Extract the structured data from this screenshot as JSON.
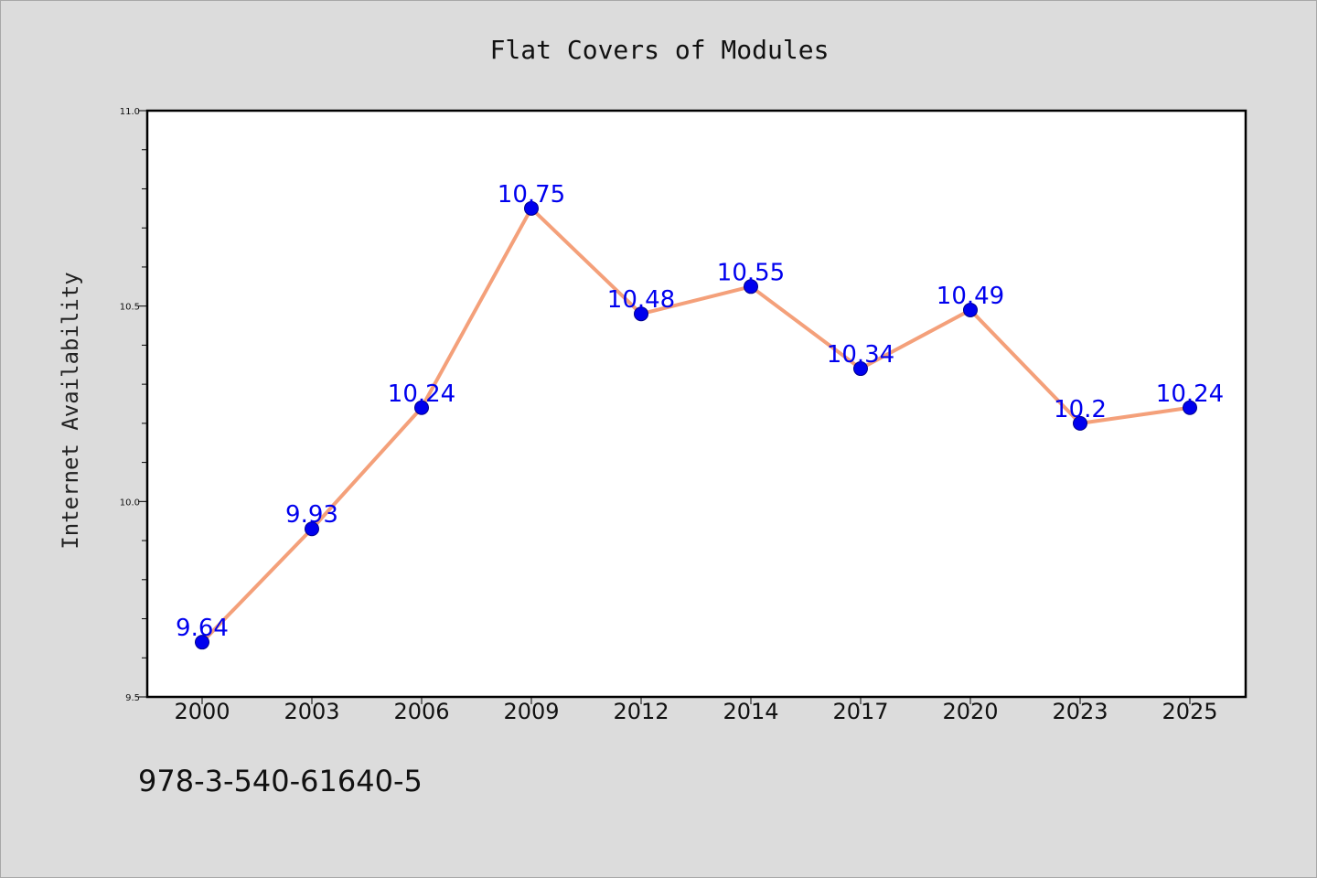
{
  "chart_data": {
    "type": "line",
    "title": "Flat Covers of Modules",
    "xlabel": "",
    "ylabel": "Internet Availability",
    "categories": [
      "2000",
      "2003",
      "2006",
      "2009",
      "2012",
      "2014",
      "2017",
      "2020",
      "2023",
      "2025"
    ],
    "series": [
      {
        "values": [
          9.64,
          9.93,
          10.24,
          10.75,
          10.48,
          10.55,
          10.34,
          10.49,
          10.2,
          10.24
        ],
        "data_labels": [
          "9.64",
          "9.93",
          "10.24",
          "10.75",
          "10.48",
          "10.55",
          "10.34",
          "10.49",
          "10.2",
          "10.24"
        ],
        "line_color": "#f4a07a",
        "marker_color": "#0000ee"
      }
    ],
    "ylim": [
      9.5,
      11.0
    ],
    "yticks": [
      "9.5",
      "10.0",
      "10.5",
      "11.0"
    ],
    "grid": false,
    "data_label_color": "#0000ee"
  },
  "footnote": "978-3-540-61640-5"
}
